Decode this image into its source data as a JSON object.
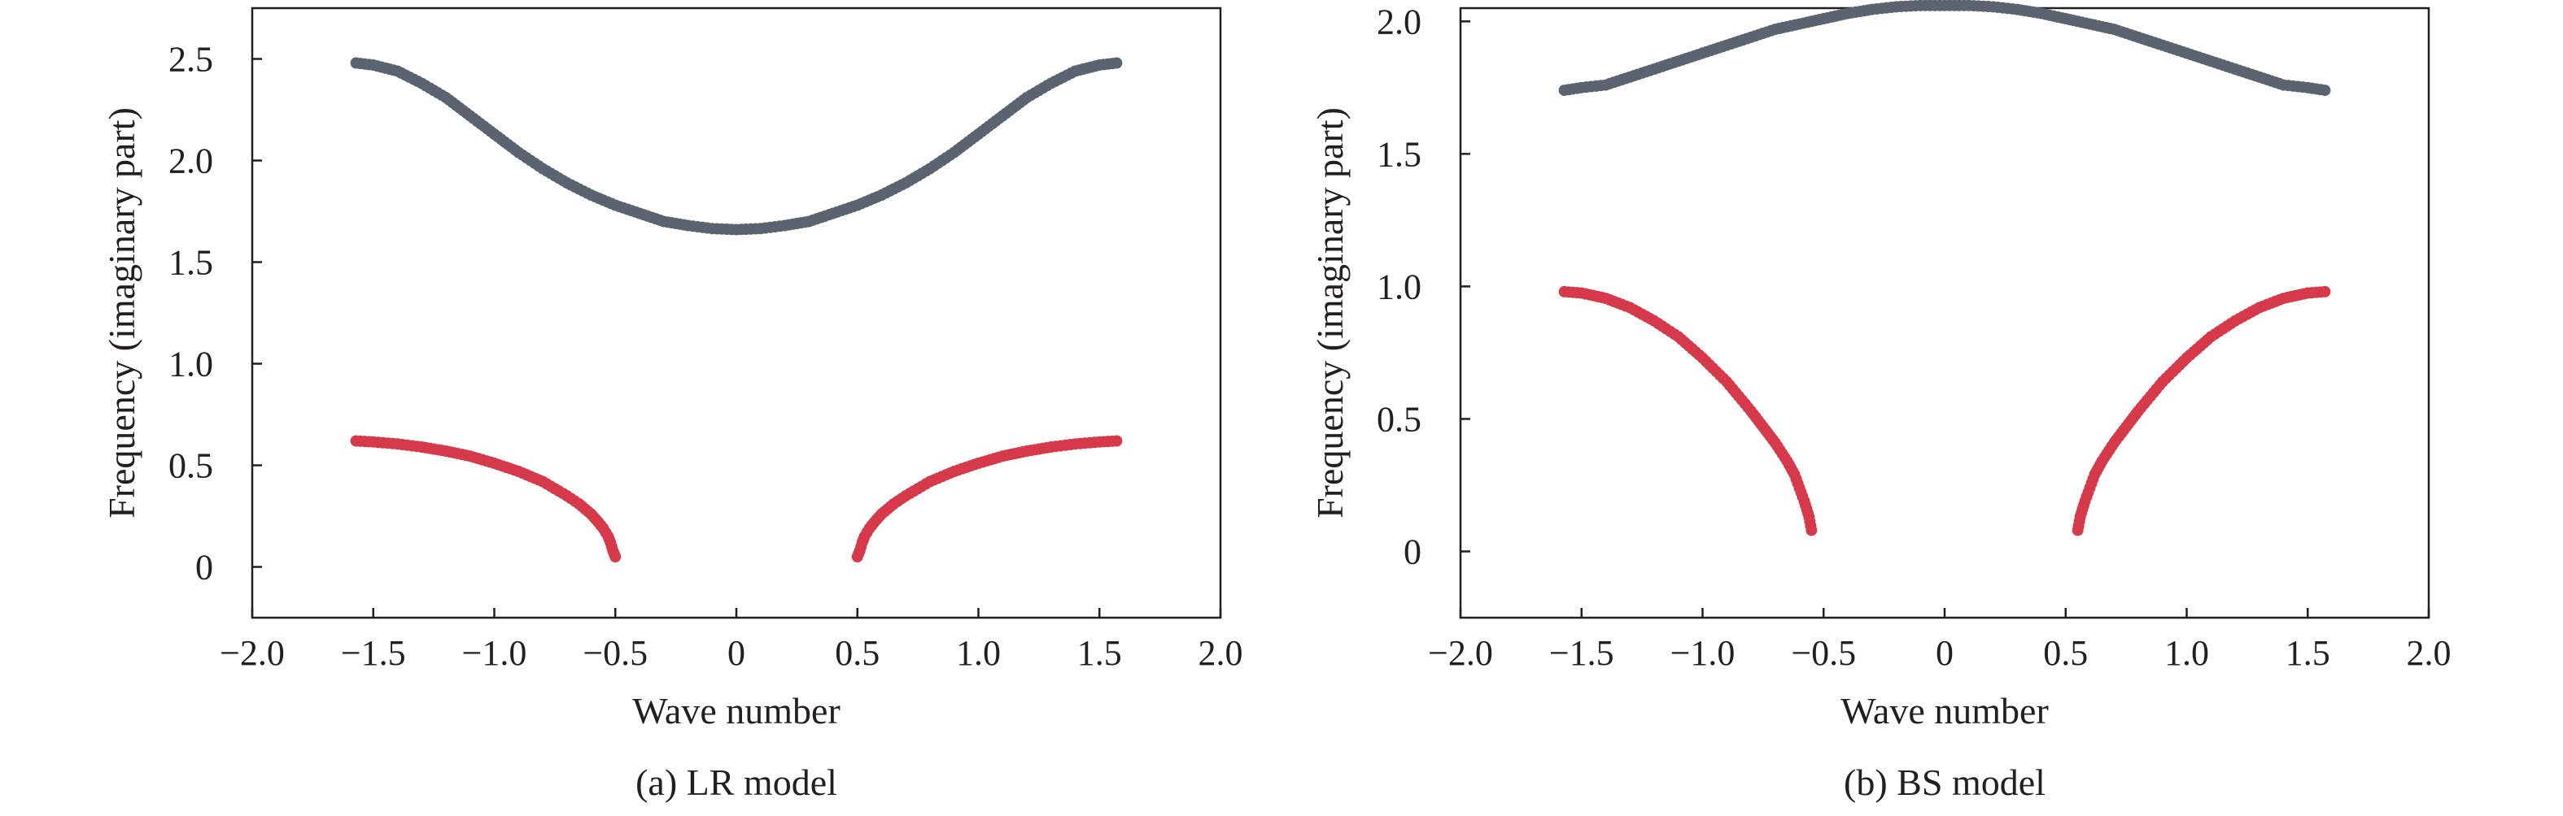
{
  "figure": {
    "panels": [
      {
        "caption": "(a) LR model"
      },
      {
        "caption": "(b) BS model"
      }
    ]
  },
  "chart_data": [
    {
      "type": "scatter",
      "title": "",
      "caption": "(a) LR model",
      "xlabel": "Wave number",
      "ylabel": "Frequency (imaginary part)",
      "xlim": [
        -2.0,
        2.0
      ],
      "ylim": [
        -0.25,
        2.75
      ],
      "xticks": [
        -2.0,
        -1.5,
        -1.0,
        -0.5,
        0,
        0.5,
        1.0,
        1.5,
        2.0
      ],
      "xtick_labels": [
        "−2.0",
        "−1.5",
        "−1.0",
        "−0.5",
        "0",
        "0.5",
        "1.0",
        "1.5",
        "2.0"
      ],
      "yticks": [
        0,
        0.5,
        1.0,
        1.5,
        2.0,
        2.5
      ],
      "ytick_labels": [
        "0",
        "0.5",
        "1.0",
        "1.5",
        "2.0",
        "2.5"
      ],
      "grid": false,
      "series": [
        {
          "color": "#5c6370",
          "x": [
            -1.571,
            -1.5,
            -1.4,
            -1.3,
            -1.2,
            -1.1,
            -1.0,
            -0.9,
            -0.8,
            -0.7,
            -0.6,
            -0.5,
            -0.4,
            -0.3,
            -0.2,
            -0.1,
            0,
            0.1,
            0.2,
            0.3,
            0.4,
            0.5,
            0.6,
            0.7,
            0.8,
            0.9,
            1.0,
            1.1,
            1.2,
            1.3,
            1.4,
            1.5,
            1.571
          ],
          "y": [
            2.48,
            2.47,
            2.44,
            2.38,
            2.31,
            2.22,
            2.13,
            2.04,
            1.96,
            1.89,
            1.83,
            1.78,
            1.74,
            1.7,
            1.68,
            1.665,
            1.66,
            1.665,
            1.68,
            1.7,
            1.74,
            1.78,
            1.83,
            1.89,
            1.96,
            2.04,
            2.13,
            2.22,
            2.31,
            2.38,
            2.44,
            2.47,
            2.48
          ]
        },
        {
          "color": "#d63a4a",
          "x": [
            -1.571,
            -1.5,
            -1.4,
            -1.3,
            -1.2,
            -1.1,
            -1.0,
            -0.9,
            -0.8,
            -0.7,
            -0.65,
            -0.6,
            -0.57,
            -0.55,
            -0.53,
            -0.52,
            -0.51,
            -0.5
          ],
          "y": [
            0.62,
            0.615,
            0.605,
            0.59,
            0.57,
            0.545,
            0.51,
            0.47,
            0.42,
            0.35,
            0.31,
            0.26,
            0.22,
            0.19,
            0.15,
            0.12,
            0.08,
            0.05
          ]
        },
        {
          "color": "#d63a4a",
          "x": [
            0.5,
            0.51,
            0.52,
            0.53,
            0.55,
            0.57,
            0.6,
            0.65,
            0.7,
            0.8,
            0.9,
            1.0,
            1.1,
            1.2,
            1.3,
            1.4,
            1.5,
            1.571
          ],
          "y": [
            0.05,
            0.08,
            0.12,
            0.15,
            0.19,
            0.22,
            0.26,
            0.31,
            0.35,
            0.42,
            0.47,
            0.51,
            0.545,
            0.57,
            0.59,
            0.605,
            0.615,
            0.62
          ]
        }
      ]
    },
    {
      "type": "scatter",
      "title": "",
      "caption": "(b) BS model",
      "xlabel": "Wave number",
      "ylabel": "Frequency (imaginary part)",
      "xlim": [
        -2.0,
        2.0
      ],
      "ylim": [
        -0.25,
        2.05
      ],
      "xticks": [
        -2.0,
        -1.5,
        -1.0,
        -0.5,
        0,
        0.5,
        1.0,
        1.5,
        2.0
      ],
      "xtick_labels": [
        "−2.0",
        "−1.5",
        "−1.0",
        "−0.5",
        "0",
        "0.5",
        "1.0",
        "1.5",
        "2.0"
      ],
      "yticks": [
        0,
        0.5,
        1.0,
        1.5,
        2.0
      ],
      "ytick_labels": [
        "0",
        "0.5",
        "1.0",
        "1.5",
        "2.0"
      ],
      "grid": false,
      "series": [
        {
          "color": "#5c6370",
          "x": [
            -1.571,
            -1.5,
            -1.4,
            -1.3,
            -1.2,
            -1.1,
            -1.0,
            -0.9,
            -0.8,
            -0.7,
            -0.6,
            -0.5,
            -0.4,
            -0.3,
            -0.2,
            -0.1,
            0,
            0.1,
            0.2,
            0.3,
            0.4,
            0.5,
            0.6,
            0.7,
            0.8,
            0.9,
            1.0,
            1.1,
            1.2,
            1.3,
            1.4,
            1.5,
            1.571
          ],
          "y": [
            1.74,
            1.75,
            1.76,
            1.79,
            1.82,
            1.85,
            1.88,
            1.91,
            1.94,
            1.97,
            1.99,
            2.01,
            2.03,
            2.045,
            2.055,
            2.06,
            2.06,
            2.06,
            2.055,
            2.045,
            2.03,
            2.01,
            1.99,
            1.97,
            1.94,
            1.91,
            1.88,
            1.85,
            1.82,
            1.79,
            1.76,
            1.75,
            1.74
          ]
        },
        {
          "color": "#d63a4a",
          "x": [
            -1.571,
            -1.5,
            -1.4,
            -1.3,
            -1.2,
            -1.1,
            -1.0,
            -0.9,
            -0.8,
            -0.75,
            -0.7,
            -0.65,
            -0.62,
            -0.6,
            -0.58,
            -0.56,
            -0.55
          ],
          "y": [
            0.98,
            0.975,
            0.955,
            0.92,
            0.87,
            0.81,
            0.73,
            0.64,
            0.53,
            0.47,
            0.41,
            0.34,
            0.29,
            0.24,
            0.19,
            0.13,
            0.08
          ]
        },
        {
          "color": "#d63a4a",
          "x": [
            0.55,
            0.56,
            0.58,
            0.6,
            0.62,
            0.65,
            0.7,
            0.75,
            0.8,
            0.9,
            1.0,
            1.1,
            1.2,
            1.3,
            1.4,
            1.5,
            1.571
          ],
          "y": [
            0.08,
            0.13,
            0.19,
            0.24,
            0.29,
            0.34,
            0.41,
            0.47,
            0.53,
            0.64,
            0.73,
            0.81,
            0.87,
            0.92,
            0.955,
            0.975,
            0.98
          ]
        }
      ]
    }
  ]
}
